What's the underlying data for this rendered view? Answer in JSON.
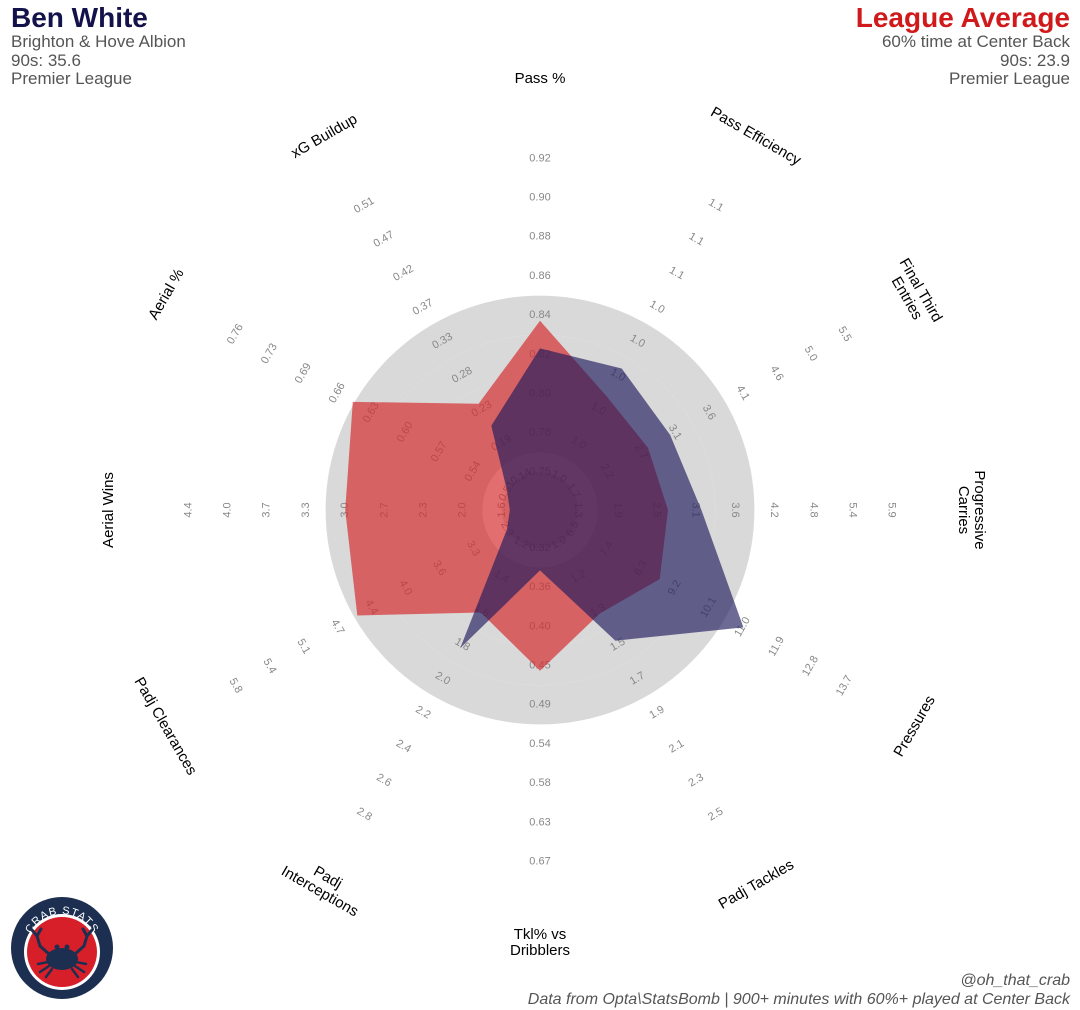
{
  "player": {
    "name": "Ben White",
    "team": "Brighton & Hove Albion",
    "nineties": "90s: 35.6",
    "league": "Premier League",
    "color": "#14124a"
  },
  "comparison": {
    "name": "League Average",
    "filter": "60% time at Center Back",
    "nineties": "90s: 23.9",
    "league": "Premier League",
    "color": "#d0191b"
  },
  "footer": {
    "handle": "@oh_that_crab",
    "source": "Data from Opta\\StatsBomb | 900+ minutes with 60%+ played at Center Back"
  },
  "logo": {
    "text": "CRAB STATS",
    "icon": "crab-icon"
  },
  "chart_data": {
    "type": "radar",
    "rings": 5,
    "ring_color": "#d9d9d9",
    "axes": [
      {
        "label": "Pass %",
        "ticks": [
          "0.75",
          "0.78",
          "0.80",
          "0.82",
          "0.84",
          "0.86",
          "0.88",
          "0.90",
          "0.92"
        ]
      },
      {
        "label": "Pass Efficiency",
        "ticks": [
          "1.0",
          "1.0",
          "1.0",
          "1.0",
          "1.0",
          "1.0",
          "1.1",
          "1.1",
          "1.1"
        ]
      },
      {
        "label": "Final Third\nEntries",
        "ticks": [
          "1.7",
          "2.2",
          "2.7",
          "3.1",
          "3.6",
          "4.1",
          "4.6",
          "5.0",
          "5.5"
        ]
      },
      {
        "label": "Progressive\nCarries",
        "ticks": [
          "1.3",
          "1.9",
          "2.5",
          "3.1",
          "3.6",
          "4.2",
          "4.8",
          "5.4",
          "5.9"
        ]
      },
      {
        "label": "Pressures",
        "ticks": [
          "6.5",
          "7.4",
          "8.3",
          "9.2",
          "10.1",
          "11.0",
          "11.9",
          "12.8",
          "13.7"
        ]
      },
      {
        "label": "Padj Tackles",
        "ticks": [
          "1.0",
          "1.2",
          "1.3",
          "1.5",
          "1.7",
          "1.9",
          "2.1",
          "2.3",
          "2.5"
        ]
      },
      {
        "label": "Tkl% vs\nDribblers",
        "ticks": [
          "0.32",
          "0.36",
          "0.40",
          "0.45",
          "0.49",
          "0.54",
          "0.58",
          "0.63",
          "0.67"
        ]
      },
      {
        "label": "Padj\nInterceptions",
        "ticks": [
          "1.2",
          "1.4",
          "1.6",
          "1.8",
          "2.0",
          "2.2",
          "2.4",
          "2.6",
          "2.8"
        ]
      },
      {
        "label": "Padj Clearances",
        "ticks": [
          "2.9",
          "3.3",
          "3.6",
          "4.0",
          "4.4",
          "4.7",
          "5.1",
          "5.4",
          "5.8"
        ]
      },
      {
        "label": "Aerial Wins",
        "ticks": [
          "1.6",
          "2.0",
          "2.3",
          "2.7",
          "3.0",
          "3.3",
          "3.7",
          "4.0",
          "4.4"
        ]
      },
      {
        "label": "Aerial %",
        "ticks": [
          "0.51",
          "0.54",
          "0.57",
          "0.60",
          "0.63",
          "0.66",
          "0.69",
          "0.73",
          "0.76"
        ]
      },
      {
        "label": "xG Buildup",
        "ticks": [
          "0.14",
          "0.19",
          "0.23",
          "0.28",
          "0.33",
          "0.37",
          "0.42",
          "0.47",
          "0.51"
        ]
      }
    ],
    "series": [
      {
        "name": "Ben White",
        "color": "#1f1a5e",
        "opacity": 0.65,
        "values": [
          0.817,
          1.04,
          3.06,
          3.11,
          11.02,
          1.54,
          0.345,
          1.82,
          2.9,
          1.53,
          0.51,
          0.21
        ]
      },
      {
        "name": "League Average",
        "color": "#d42a2c",
        "opacity": 0.68,
        "values": [
          0.832,
          1.03,
          2.75,
          2.62,
          8.8,
          1.39,
          0.457,
          1.61,
          4.5,
          3.0,
          0.652,
          0.24
        ]
      }
    ]
  }
}
